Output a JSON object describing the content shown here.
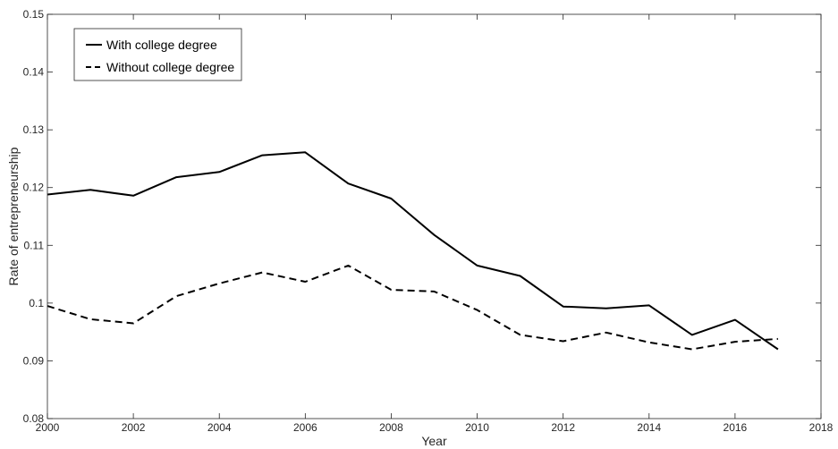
{
  "chart_data": {
    "type": "line",
    "xlabel": "Year",
    "ylabel": "Rate of entrepreneurship",
    "xlim": [
      2000,
      2018
    ],
    "ylim": [
      0.08,
      0.15
    ],
    "x_ticks": [
      "2000",
      "2002",
      "2004",
      "2006",
      "2008",
      "2010",
      "2012",
      "2014",
      "2016",
      "2018"
    ],
    "y_ticks": [
      "0.08",
      "0.09",
      "0.1",
      "0.11",
      "0.12",
      "0.13",
      "0.14",
      "0.15"
    ],
    "grid": false,
    "legend_position": "top-left",
    "x": [
      2000,
      2001,
      2002,
      2003,
      2004,
      2005,
      2006,
      2007,
      2008,
      2009,
      2010,
      2011,
      2012,
      2013,
      2014,
      2015,
      2016,
      2017
    ],
    "series": [
      {
        "name": "With college degree",
        "style": "solid",
        "color": "#000000",
        "values": [
          0.1188,
          0.1196,
          0.1186,
          0.1218,
          0.1227,
          0.1256,
          0.1261,
          0.1207,
          0.1181,
          0.1118,
          0.1065,
          0.1047,
          0.0994,
          0.0991,
          0.0996,
          0.0945,
          0.0971,
          0.092
        ]
      },
      {
        "name": "Without college degree",
        "style": "dashed",
        "color": "#000000",
        "values": [
          0.0995,
          0.0972,
          0.0965,
          0.1012,
          0.1034,
          0.1053,
          0.1037,
          0.1065,
          0.1023,
          0.102,
          0.0988,
          0.0945,
          0.0934,
          0.0949,
          0.0932,
          0.092,
          0.0933,
          0.0938
        ]
      }
    ]
  }
}
